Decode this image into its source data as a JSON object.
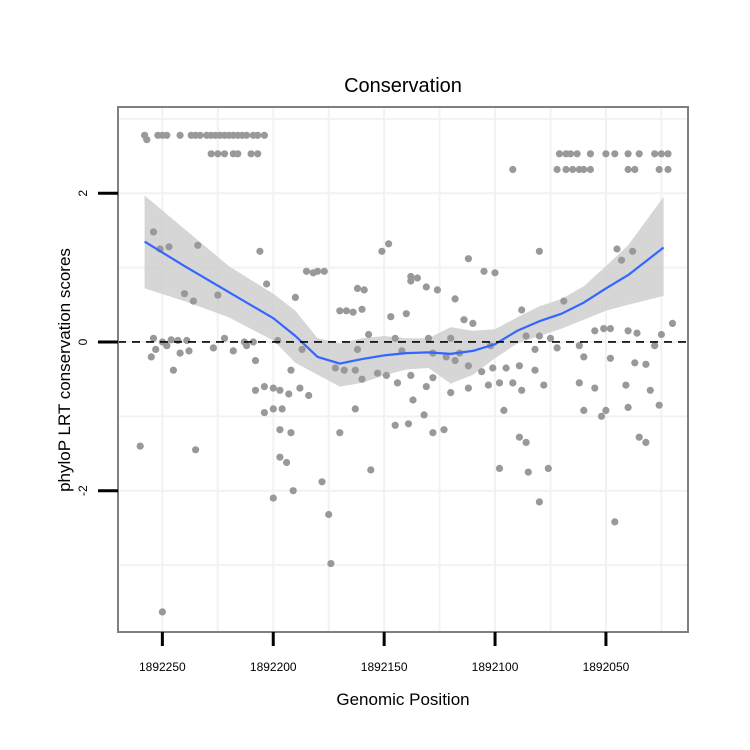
{
  "chart_data": {
    "type": "scatter",
    "title": "Conservation",
    "xlabel": "Genomic Position",
    "ylabel": "phyloP LRT conservation scores",
    "x_reversed": true,
    "xlim": [
      1892270,
      1892013
    ],
    "ylim": [
      -3.9,
      3.16
    ],
    "x_ticks": [
      1892250,
      1892200,
      1892150,
      1892100,
      1892050
    ],
    "x_tick_labels": [
      "1892250",
      "1892200",
      "1892150",
      "1892100",
      "1892050"
    ],
    "y_ticks": [
      2,
      0,
      -2
    ],
    "y_tick_labels": [
      "2",
      "0",
      "-2"
    ],
    "reference_line": {
      "y": 0,
      "style": "dashed"
    },
    "colors": {
      "points": "#999999",
      "smooth": "#3366ff",
      "band": "#cccccc",
      "frame": "#7f7f7f",
      "grid": "#f2f2f2"
    },
    "smooth": {
      "x": [
        1892258,
        1892240,
        1892220,
        1892200,
        1892190,
        1892180,
        1892170,
        1892160,
        1892150,
        1892140,
        1892130,
        1892120,
        1892110,
        1892100,
        1892090,
        1892080,
        1892070,
        1892060,
        1892050,
        1892040,
        1892024
      ],
      "y": [
        1.35,
        1.02,
        0.67,
        0.32,
        0.08,
        -0.2,
        -0.29,
        -0.23,
        -0.18,
        -0.15,
        -0.14,
        -0.16,
        -0.12,
        -0.03,
        0.15,
        0.28,
        0.38,
        0.53,
        0.72,
        0.9,
        1.27
      ],
      "lower": [
        0.72,
        0.55,
        0.33,
        0.02,
        -0.28,
        -0.44,
        -0.6,
        -0.55,
        -0.45,
        -0.37,
        -0.35,
        -0.56,
        -0.44,
        -0.22,
        -0.02,
        0.08,
        0.18,
        0.3,
        0.42,
        0.5,
        0.62
      ],
      "upper": [
        1.97,
        1.52,
        1.02,
        0.65,
        0.42,
        0.05,
        -0.02,
        0.05,
        0.08,
        0.05,
        0.05,
        0.2,
        0.15,
        0.17,
        0.33,
        0.48,
        0.58,
        0.75,
        1.02,
        1.3,
        1.95
      ]
    },
    "points": [
      {
        "x": 1892258,
        "y": 2.78
      },
      {
        "x": 1892257,
        "y": 2.72
      },
      {
        "x": 1892252,
        "y": 2.78
      },
      {
        "x": 1892250,
        "y": 2.78
      },
      {
        "x": 1892248,
        "y": 2.78
      },
      {
        "x": 1892242,
        "y": 2.78
      },
      {
        "x": 1892237,
        "y": 2.78
      },
      {
        "x": 1892235,
        "y": 2.78
      },
      {
        "x": 1892233,
        "y": 2.78
      },
      {
        "x": 1892230,
        "y": 2.78
      },
      {
        "x": 1892228,
        "y": 2.78
      },
      {
        "x": 1892226,
        "y": 2.78
      },
      {
        "x": 1892224,
        "y": 2.78
      },
      {
        "x": 1892222,
        "y": 2.78
      },
      {
        "x": 1892220,
        "y": 2.78
      },
      {
        "x": 1892218,
        "y": 2.78
      },
      {
        "x": 1892216,
        "y": 2.78
      },
      {
        "x": 1892214,
        "y": 2.78
      },
      {
        "x": 1892212,
        "y": 2.78
      },
      {
        "x": 1892209,
        "y": 2.78
      },
      {
        "x": 1892207,
        "y": 2.78
      },
      {
        "x": 1892204,
        "y": 2.78
      },
      {
        "x": 1892228,
        "y": 2.53
      },
      {
        "x": 1892225,
        "y": 2.53
      },
      {
        "x": 1892222,
        "y": 2.53
      },
      {
        "x": 1892218,
        "y": 2.53
      },
      {
        "x": 1892216,
        "y": 2.53
      },
      {
        "x": 1892210,
        "y": 2.53
      },
      {
        "x": 1892207,
        "y": 2.53
      },
      {
        "x": 1892071,
        "y": 2.53
      },
      {
        "x": 1892068,
        "y": 2.53
      },
      {
        "x": 1892066,
        "y": 2.53
      },
      {
        "x": 1892063,
        "y": 2.53
      },
      {
        "x": 1892057,
        "y": 2.53
      },
      {
        "x": 1892050,
        "y": 2.53
      },
      {
        "x": 1892046,
        "y": 2.53
      },
      {
        "x": 1892040,
        "y": 2.53
      },
      {
        "x": 1892035,
        "y": 2.53
      },
      {
        "x": 1892028,
        "y": 2.53
      },
      {
        "x": 1892025,
        "y": 2.53
      },
      {
        "x": 1892022,
        "y": 2.53
      },
      {
        "x": 1892092,
        "y": 2.32
      },
      {
        "x": 1892072,
        "y": 2.32
      },
      {
        "x": 1892068,
        "y": 2.32
      },
      {
        "x": 1892065,
        "y": 2.32
      },
      {
        "x": 1892062,
        "y": 2.32
      },
      {
        "x": 1892060,
        "y": 2.32
      },
      {
        "x": 1892057,
        "y": 2.32
      },
      {
        "x": 1892040,
        "y": 2.32
      },
      {
        "x": 1892037,
        "y": 2.32
      },
      {
        "x": 1892026,
        "y": 2.32
      },
      {
        "x": 1892022,
        "y": 2.32
      },
      {
        "x": 1892254,
        "y": 1.48
      },
      {
        "x": 1892247,
        "y": 1.28
      },
      {
        "x": 1892251,
        "y": 1.25
      },
      {
        "x": 1892234,
        "y": 1.3
      },
      {
        "x": 1892206,
        "y": 1.22
      },
      {
        "x": 1892148,
        "y": 1.32
      },
      {
        "x": 1892151,
        "y": 1.22
      },
      {
        "x": 1892112,
        "y": 1.12
      },
      {
        "x": 1892080,
        "y": 1.22
      },
      {
        "x": 1892045,
        "y": 1.25
      },
      {
        "x": 1892038,
        "y": 1.22
      },
      {
        "x": 1892043,
        "y": 1.1
      },
      {
        "x": 1892185,
        "y": 0.95
      },
      {
        "x": 1892182,
        "y": 0.93
      },
      {
        "x": 1892180,
        "y": 0.95
      },
      {
        "x": 1892177,
        "y": 0.95
      },
      {
        "x": 1892105,
        "y": 0.95
      },
      {
        "x": 1892100,
        "y": 0.93
      },
      {
        "x": 1892138,
        "y": 0.88
      },
      {
        "x": 1892135,
        "y": 0.86
      },
      {
        "x": 1892138,
        "y": 0.82
      },
      {
        "x": 1892203,
        "y": 0.78
      },
      {
        "x": 1892131,
        "y": 0.74
      },
      {
        "x": 1892126,
        "y": 0.7
      },
      {
        "x": 1892162,
        "y": 0.72
      },
      {
        "x": 1892159,
        "y": 0.7
      },
      {
        "x": 1892240,
        "y": 0.65
      },
      {
        "x": 1892225,
        "y": 0.63
      },
      {
        "x": 1892236,
        "y": 0.55
      },
      {
        "x": 1892190,
        "y": 0.6
      },
      {
        "x": 1892118,
        "y": 0.58
      },
      {
        "x": 1892069,
        "y": 0.55
      },
      {
        "x": 1892088,
        "y": 0.43
      },
      {
        "x": 1892170,
        "y": 0.42
      },
      {
        "x": 1892167,
        "y": 0.42
      },
      {
        "x": 1892164,
        "y": 0.4
      },
      {
        "x": 1892160,
        "y": 0.44
      },
      {
        "x": 1892140,
        "y": 0.38
      },
      {
        "x": 1892147,
        "y": 0.34
      },
      {
        "x": 1892114,
        "y": 0.3
      },
      {
        "x": 1892110,
        "y": 0.25
      },
      {
        "x": 1892020,
        "y": 0.25
      },
      {
        "x": 1892254,
        "y": 0.05
      },
      {
        "x": 1892250,
        "y": 0.0
      },
      {
        "x": 1892246,
        "y": 0.03
      },
      {
        "x": 1892243,
        "y": 0.02
      },
      {
        "x": 1892239,
        "y": 0.02
      },
      {
        "x": 1892222,
        "y": 0.05
      },
      {
        "x": 1892213,
        "y": 0.0
      },
      {
        "x": 1892209,
        "y": 0.0
      },
      {
        "x": 1892198,
        "y": 0.02
      },
      {
        "x": 1892157,
        "y": 0.1
      },
      {
        "x": 1892145,
        "y": 0.05
      },
      {
        "x": 1892130,
        "y": 0.05
      },
      {
        "x": 1892120,
        "y": 0.05
      },
      {
        "x": 1892086,
        "y": 0.08
      },
      {
        "x": 1892080,
        "y": 0.08
      },
      {
        "x": 1892075,
        "y": 0.05
      },
      {
        "x": 1892055,
        "y": 0.15
      },
      {
        "x": 1892051,
        "y": 0.18
      },
      {
        "x": 1892048,
        "y": 0.18
      },
      {
        "x": 1892040,
        "y": 0.15
      },
      {
        "x": 1892036,
        "y": 0.12
      },
      {
        "x": 1892025,
        "y": 0.1
      },
      {
        "x": 1892253,
        "y": -0.1
      },
      {
        "x": 1892248,
        "y": -0.05
      },
      {
        "x": 1892242,
        "y": -0.15
      },
      {
        "x": 1892238,
        "y": -0.12
      },
      {
        "x": 1892227,
        "y": -0.08
      },
      {
        "x": 1892218,
        "y": -0.12
      },
      {
        "x": 1892212,
        "y": -0.05
      },
      {
        "x": 1892187,
        "y": -0.1
      },
      {
        "x": 1892162,
        "y": -0.1
      },
      {
        "x": 1892142,
        "y": -0.12
      },
      {
        "x": 1892128,
        "y": -0.15
      },
      {
        "x": 1892122,
        "y": -0.2
      },
      {
        "x": 1892118,
        "y": -0.25
      },
      {
        "x": 1892116,
        "y": -0.15
      },
      {
        "x": 1892102,
        "y": -0.05
      },
      {
        "x": 1892082,
        "y": -0.1
      },
      {
        "x": 1892072,
        "y": -0.08
      },
      {
        "x": 1892062,
        "y": -0.05
      },
      {
        "x": 1892028,
        "y": -0.05
      },
      {
        "x": 1892255,
        "y": -0.2
      },
      {
        "x": 1892245,
        "y": -0.38
      },
      {
        "x": 1892208,
        "y": -0.25
      },
      {
        "x": 1892192,
        "y": -0.38
      },
      {
        "x": 1892172,
        "y": -0.35
      },
      {
        "x": 1892168,
        "y": -0.38
      },
      {
        "x": 1892163,
        "y": -0.38
      },
      {
        "x": 1892153,
        "y": -0.42
      },
      {
        "x": 1892149,
        "y": -0.45
      },
      {
        "x": 1892138,
        "y": -0.45
      },
      {
        "x": 1892128,
        "y": -0.48
      },
      {
        "x": 1892112,
        "y": -0.32
      },
      {
        "x": 1892106,
        "y": -0.4
      },
      {
        "x": 1892101,
        "y": -0.35
      },
      {
        "x": 1892095,
        "y": -0.35
      },
      {
        "x": 1892089,
        "y": -0.32
      },
      {
        "x": 1892082,
        "y": -0.38
      },
      {
        "x": 1892060,
        "y": -0.2
      },
      {
        "x": 1892048,
        "y": -0.22
      },
      {
        "x": 1892037,
        "y": -0.28
      },
      {
        "x": 1892032,
        "y": -0.3
      },
      {
        "x": 1892208,
        "y": -0.65
      },
      {
        "x": 1892204,
        "y": -0.6
      },
      {
        "x": 1892200,
        "y": -0.62
      },
      {
        "x": 1892197,
        "y": -0.65
      },
      {
        "x": 1892193,
        "y": -0.7
      },
      {
        "x": 1892188,
        "y": -0.62
      },
      {
        "x": 1892184,
        "y": -0.72
      },
      {
        "x": 1892160,
        "y": -0.5
      },
      {
        "x": 1892144,
        "y": -0.55
      },
      {
        "x": 1892131,
        "y": -0.6
      },
      {
        "x": 1892120,
        "y": -0.68
      },
      {
        "x": 1892112,
        "y": -0.62
      },
      {
        "x": 1892103,
        "y": -0.58
      },
      {
        "x": 1892098,
        "y": -0.55
      },
      {
        "x": 1892092,
        "y": -0.55
      },
      {
        "x": 1892088,
        "y": -0.65
      },
      {
        "x": 1892078,
        "y": -0.58
      },
      {
        "x": 1892062,
        "y": -0.55
      },
      {
        "x": 1892055,
        "y": -0.62
      },
      {
        "x": 1892041,
        "y": -0.58
      },
      {
        "x": 1892030,
        "y": -0.65
      },
      {
        "x": 1892204,
        "y": -0.95
      },
      {
        "x": 1892200,
        "y": -0.9
      },
      {
        "x": 1892196,
        "y": -0.9
      },
      {
        "x": 1892170,
        "y": -1.22
      },
      {
        "x": 1892163,
        "y": -0.9
      },
      {
        "x": 1892145,
        "y": -1.12
      },
      {
        "x": 1892137,
        "y": -0.78
      },
      {
        "x": 1892132,
        "y": -0.98
      },
      {
        "x": 1892128,
        "y": -1.22
      },
      {
        "x": 1892139,
        "y": -1.1
      },
      {
        "x": 1892123,
        "y": -1.18
      },
      {
        "x": 1892096,
        "y": -0.92
      },
      {
        "x": 1892060,
        "y": -0.92
      },
      {
        "x": 1892052,
        "y": -1.0
      },
      {
        "x": 1892050,
        "y": -0.92
      },
      {
        "x": 1892040,
        "y": -0.88
      },
      {
        "x": 1892026,
        "y": -0.85
      },
      {
        "x": 1892197,
        "y": -1.18
      },
      {
        "x": 1892192,
        "y": -1.22
      },
      {
        "x": 1892089,
        "y": -1.28
      },
      {
        "x": 1892086,
        "y": -1.35
      },
      {
        "x": 1892035,
        "y": -1.28
      },
      {
        "x": 1892032,
        "y": -1.35
      },
      {
        "x": 1892260,
        "y": -1.4
      },
      {
        "x": 1892235,
        "y": -1.45
      },
      {
        "x": 1892197,
        "y": -1.55
      },
      {
        "x": 1892194,
        "y": -1.62
      },
      {
        "x": 1892098,
        "y": -1.7
      },
      {
        "x": 1892085,
        "y": -1.75
      },
      {
        "x": 1892076,
        "y": -1.7
      },
      {
        "x": 1892156,
        "y": -1.72
      },
      {
        "x": 1892178,
        "y": -1.88
      },
      {
        "x": 1892191,
        "y": -2.0
      },
      {
        "x": 1892200,
        "y": -2.1
      },
      {
        "x": 1892080,
        "y": -2.15
      },
      {
        "x": 1892175,
        "y": -2.32
      },
      {
        "x": 1892046,
        "y": -2.42
      },
      {
        "x": 1892174,
        "y": -2.98
      },
      {
        "x": 1892250,
        "y": -3.63
      }
    ]
  }
}
